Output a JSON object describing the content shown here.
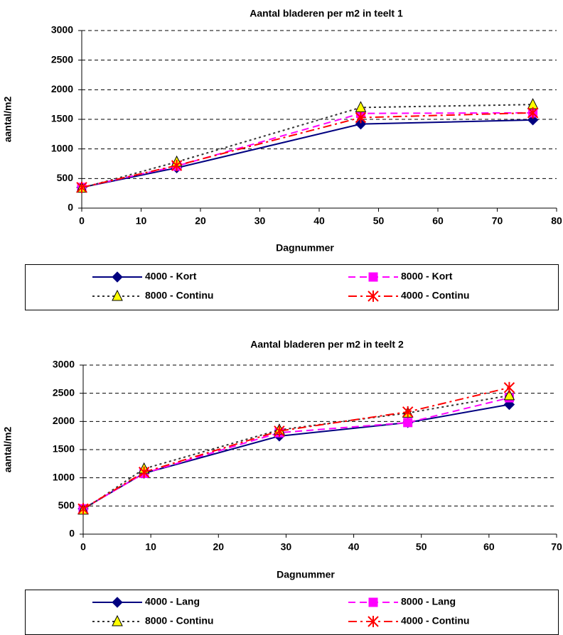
{
  "chart_data": [
    {
      "type": "line",
      "title": "Aantal bladeren per m2 in teelt 1",
      "x_label": "Dagnummer",
      "y_label": "aantal/m2",
      "xlim": [
        0,
        80
      ],
      "xticks": [
        0,
        10,
        20,
        30,
        40,
        50,
        60,
        70,
        80
      ],
      "ylim": [
        0,
        3000
      ],
      "yticks": [
        0,
        500,
        1000,
        1500,
        2000,
        2500,
        3000
      ],
      "grid": true,
      "series": [
        {
          "name": "4000 - Kort",
          "color": "#000080",
          "dash": "solid",
          "marker": "diamond",
          "marker_color": "#000080",
          "x": [
            0,
            16,
            47,
            76
          ],
          "values": [
            350,
            680,
            1420,
            1490
          ]
        },
        {
          "name": "8000 - Kort",
          "color": "#ff00ff",
          "dash": "dashed",
          "marker": "square",
          "marker_color": "#ff00ff",
          "x": [
            0,
            16,
            47,
            76
          ],
          "values": [
            350,
            710,
            1600,
            1610
          ]
        },
        {
          "name": "8000 - Continu",
          "color": "#333333",
          "dash": "dotted",
          "marker": "triangle",
          "marker_color": "#ffff00",
          "x": [
            0,
            16,
            47,
            76
          ],
          "values": [
            340,
            780,
            1700,
            1750
          ]
        },
        {
          "name": "4000 - Continu",
          "color": "#ff0000",
          "dash": "dashdot",
          "marker": "star",
          "marker_color": "#ff0000",
          "x": [
            0,
            16,
            47,
            76
          ],
          "values": [
            350,
            720,
            1530,
            1610
          ]
        }
      ]
    },
    {
      "type": "line",
      "title": "Aantal bladeren per m2 in teelt 2",
      "x_label": "Dagnummer",
      "y_label": "aantal/m2",
      "xlim": [
        0,
        70
      ],
      "xticks": [
        0,
        10,
        20,
        30,
        40,
        50,
        60,
        70
      ],
      "ylim": [
        0,
        3000
      ],
      "yticks": [
        0,
        500,
        1000,
        1500,
        2000,
        2500,
        3000
      ],
      "grid": true,
      "series": [
        {
          "name": "4000 - Lang",
          "color": "#000080",
          "dash": "solid",
          "marker": "diamond",
          "marker_color": "#000080",
          "x": [
            0,
            9,
            29,
            48,
            63
          ],
          "values": [
            450,
            1080,
            1740,
            1980,
            2300
          ]
        },
        {
          "name": "8000 - Lang",
          "color": "#ff00ff",
          "dash": "dashed",
          "marker": "square",
          "marker_color": "#ff00ff",
          "x": [
            0,
            9,
            29,
            48,
            63
          ],
          "values": [
            450,
            1080,
            1800,
            1980,
            2420
          ]
        },
        {
          "name": "8000 - Continu",
          "color": "#333333",
          "dash": "dotted",
          "marker": "triangle",
          "marker_color": "#ffff00",
          "x": [
            0,
            9,
            29,
            48,
            63
          ],
          "values": [
            430,
            1160,
            1850,
            2150,
            2460
          ]
        },
        {
          "name": "4000 - Continu",
          "color": "#ff0000",
          "dash": "dashdot",
          "marker": "star",
          "marker_color": "#ff0000",
          "x": [
            0,
            9,
            29,
            48,
            63
          ],
          "values": [
            450,
            1100,
            1830,
            2170,
            2600
          ]
        }
      ]
    }
  ]
}
